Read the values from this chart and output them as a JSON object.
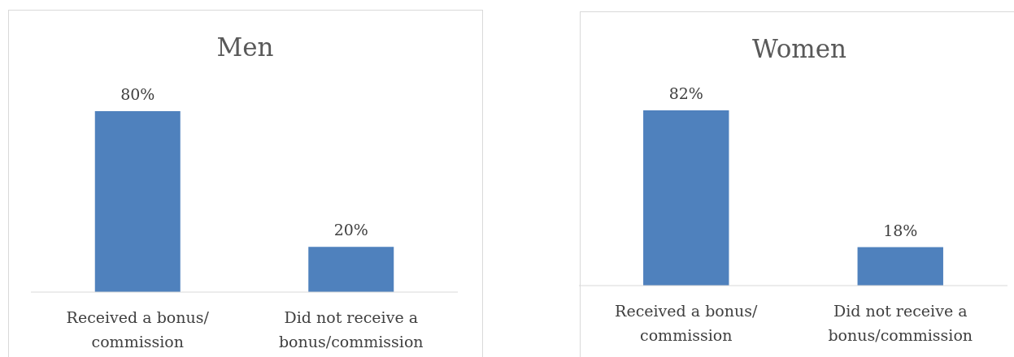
{
  "chart_data": [
    {
      "type": "bar",
      "title": "Men",
      "categories": [
        "Received a bonus/ commission",
        "Did not receive a bonus/commission"
      ],
      "values": [
        80,
        20
      ],
      "value_labels": [
        "80%",
        "20%"
      ],
      "color": "#4f81bd"
    },
    {
      "type": "bar",
      "title": "Women",
      "categories": [
        "Received a bonus/ commission",
        "Did not receive a bonus/commission"
      ],
      "values": [
        82,
        18
      ],
      "value_labels": [
        "82%",
        "18%"
      ],
      "color": "#4f81bd"
    }
  ]
}
